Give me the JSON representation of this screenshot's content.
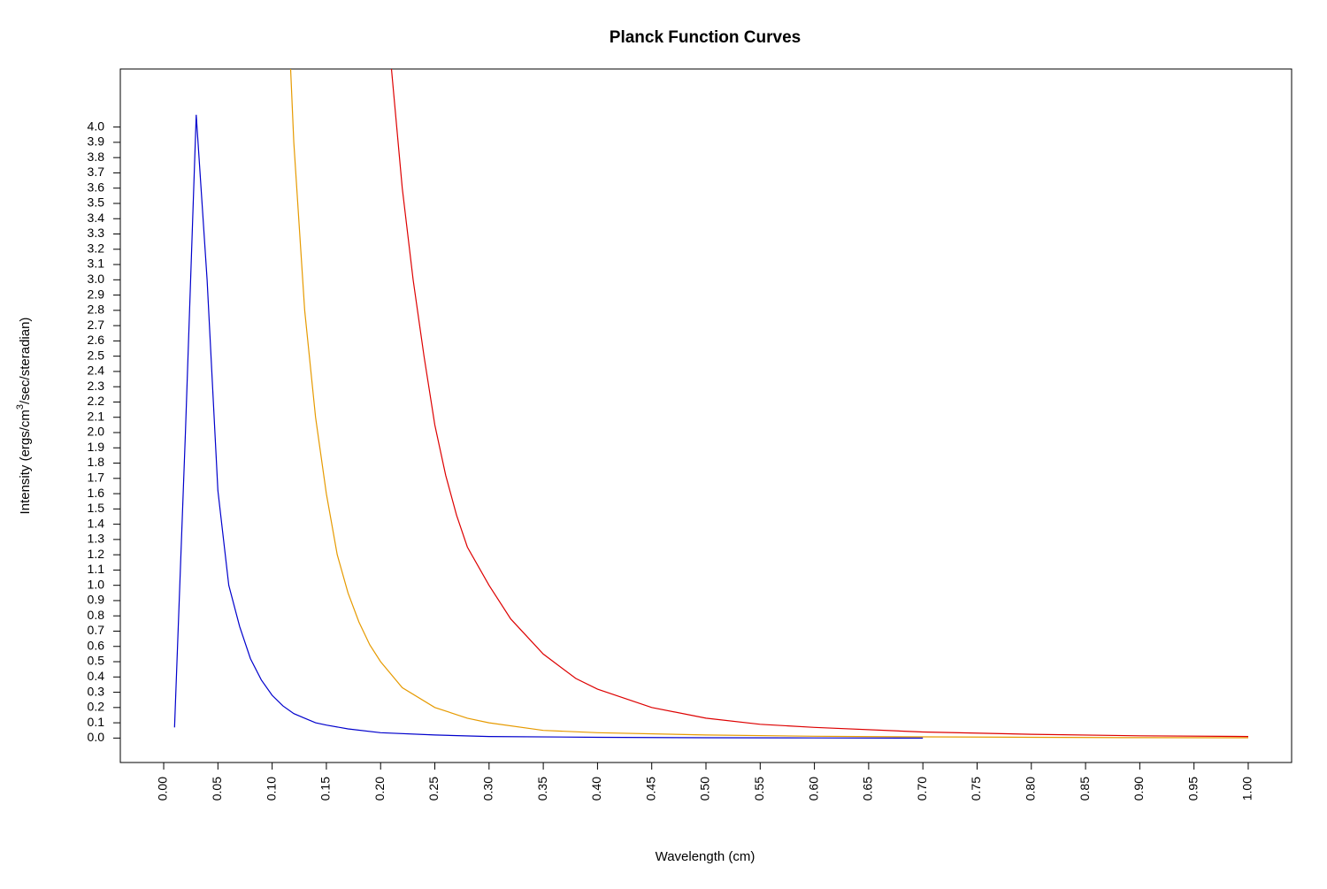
{
  "chart_data": {
    "type": "line",
    "title": "Planck Function Curves",
    "xlabel": "Wavelength (cm)",
    "ylabel_parts": [
      "Intensity (ergs/cm",
      "3",
      "/sec/steradian)"
    ],
    "xlim": [
      -0.04,
      1.04
    ],
    "ylim": [
      -0.16,
      4.38
    ],
    "xticks": [
      "0.00",
      "0.05",
      "0.10",
      "0.15",
      "0.20",
      "0.25",
      "0.30",
      "0.35",
      "0.40",
      "0.45",
      "0.50",
      "0.55",
      "0.60",
      "0.65",
      "0.70",
      "0.75",
      "0.80",
      "0.85",
      "0.90",
      "0.95",
      "1.00"
    ],
    "yticks": [
      "0.0",
      "0.1",
      "0.2",
      "0.3",
      "0.4",
      "0.5",
      "0.6",
      "0.7",
      "0.8",
      "0.9",
      "1.0",
      "1.1",
      "1.2",
      "1.3",
      "1.4",
      "1.5",
      "1.6",
      "1.7",
      "1.8",
      "1.9",
      "2.0",
      "2.1",
      "2.2",
      "2.3",
      "2.4",
      "2.5",
      "2.6",
      "2.7",
      "2.8",
      "2.9",
      "3.0",
      "3.1",
      "3.2",
      "3.3",
      "3.4",
      "3.5",
      "3.6",
      "3.7",
      "3.8",
      "3.9",
      "4.0"
    ],
    "series": [
      {
        "name": "blue",
        "color": "#0000cc",
        "x": [
          0.01,
          0.02,
          0.03,
          0.04,
          0.05,
          0.06,
          0.07,
          0.08,
          0.09,
          0.1,
          0.11,
          0.12,
          0.13,
          0.14,
          0.15,
          0.17,
          0.2,
          0.25,
          0.3,
          0.4,
          0.5,
          0.6,
          0.7
        ],
        "y": [
          0.07,
          2.0,
          4.08,
          3.0,
          1.62,
          1.0,
          0.73,
          0.52,
          0.38,
          0.28,
          0.21,
          0.16,
          0.13,
          0.1,
          0.085,
          0.06,
          0.035,
          0.02,
          0.01,
          0.005,
          0.002,
          0.001,
          0.0
        ]
      },
      {
        "name": "orange",
        "color": "#e69a00",
        "x": [
          0.117,
          0.12,
          0.13,
          0.14,
          0.15,
          0.16,
          0.17,
          0.18,
          0.19,
          0.2,
          0.22,
          0.25,
          0.28,
          0.3,
          0.35,
          0.4,
          0.5,
          0.6,
          0.7,
          0.8,
          0.9,
          1.0
        ],
        "y": [
          4.38,
          3.9,
          2.8,
          2.1,
          1.6,
          1.2,
          0.95,
          0.76,
          0.61,
          0.5,
          0.33,
          0.2,
          0.13,
          0.1,
          0.05,
          0.035,
          0.02,
          0.012,
          0.008,
          0.005,
          0.003,
          0.002
        ]
      },
      {
        "name": "red",
        "color": "#dd0000",
        "x": [
          0.21,
          0.22,
          0.23,
          0.24,
          0.25,
          0.26,
          0.27,
          0.28,
          0.3,
          0.32,
          0.35,
          0.38,
          0.4,
          0.45,
          0.5,
          0.55,
          0.6,
          0.7,
          0.8,
          0.9,
          1.0
        ],
        "y": [
          4.38,
          3.6,
          3.0,
          2.5,
          2.05,
          1.72,
          1.46,
          1.25,
          1.0,
          0.78,
          0.55,
          0.39,
          0.32,
          0.2,
          0.13,
          0.09,
          0.07,
          0.04,
          0.025,
          0.015,
          0.01
        ]
      }
    ]
  }
}
